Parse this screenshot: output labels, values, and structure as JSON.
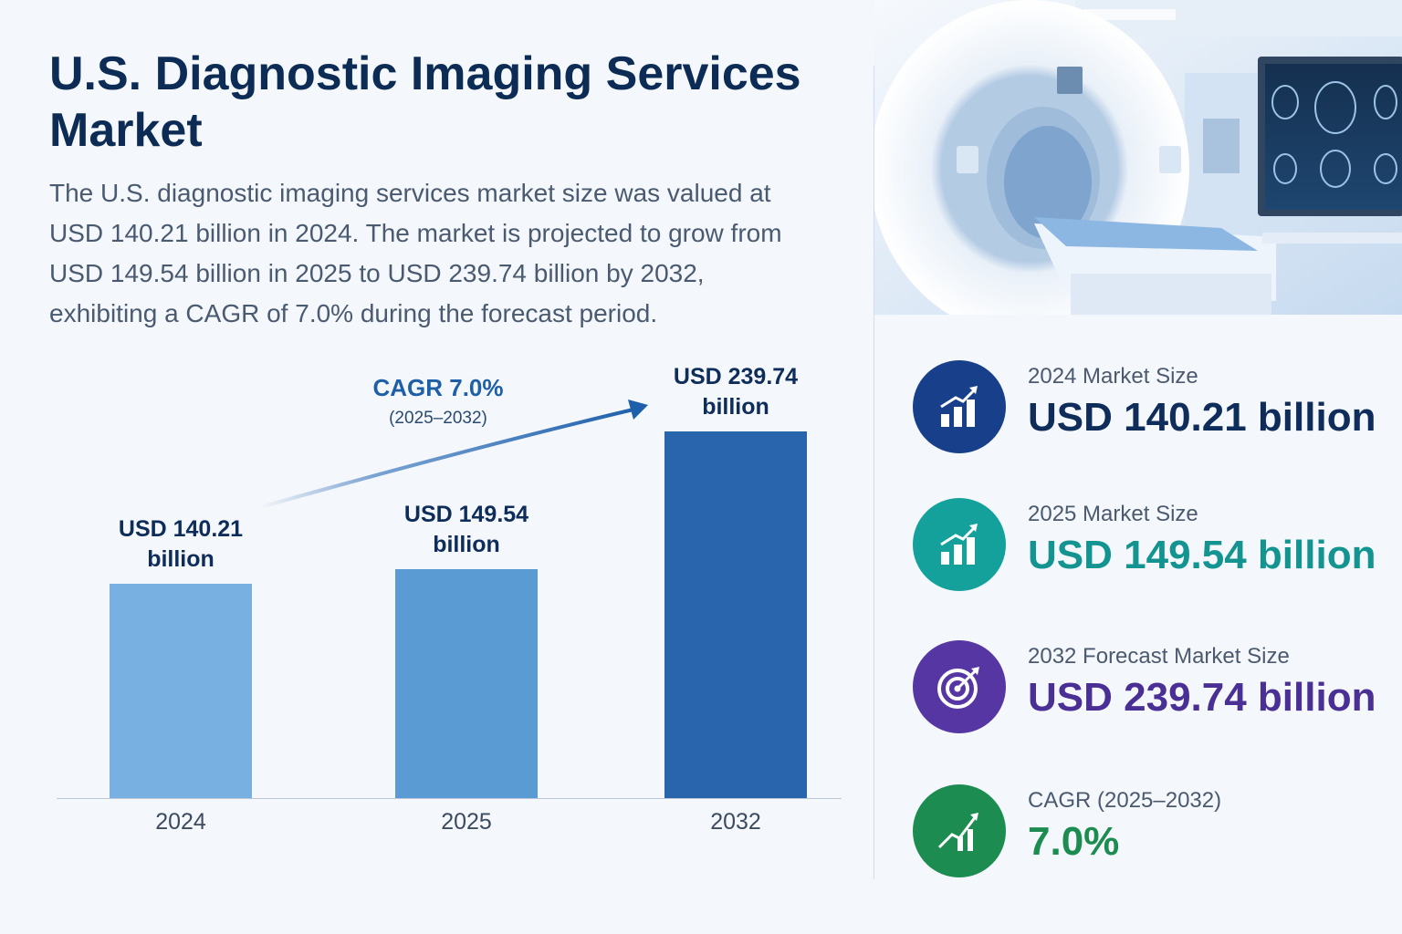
{
  "title": "U.S. Diagnostic Imaging Services Market",
  "description": "The U.S. diagnostic imaging services market size was valued at USD 140.21 billion in 2024. The market is projected to grow from USD 149.54 billion in 2025 to USD 239.74 billion by 2032, exhibiting a CAGR of 7.0% during the forecast period.",
  "chart_data": {
    "type": "bar",
    "title": "",
    "xlabel": "",
    "ylabel": "",
    "categories": [
      "2024",
      "2025",
      "2032"
    ],
    "values": [
      140.21,
      149.54,
      239.74
    ],
    "data_labels": [
      "USD 140.21 billion",
      "USD 149.54 billion",
      "USD 239.74 billion"
    ],
    "units": "USD billion",
    "colors": [
      "#78b0e2",
      "#5b9bd3",
      "#2865ad"
    ],
    "ylim": [
      0,
      239.74
    ],
    "grid": false,
    "annotation": {
      "label": "CAGR 7.0%",
      "period": "(2025–2032)"
    }
  },
  "stats": [
    {
      "label": "2024 Market Size",
      "value": "USD 140.21 billion",
      "color": "#183f8a",
      "icon": "bar-chart-up-icon"
    },
    {
      "label": "2025 Market Size",
      "value": "USD 149.54 billion",
      "color": "#14a19b",
      "icon": "bar-chart-up-icon"
    },
    {
      "label": "2032 Forecast Market Size",
      "value": "USD 239.74 billion",
      "color": "#5636a3",
      "icon": "target-icon"
    },
    {
      "label": "CAGR (2025–2032)",
      "value": "7.0%",
      "color": "#1c8c50",
      "icon": "growth-chart-icon"
    }
  ]
}
